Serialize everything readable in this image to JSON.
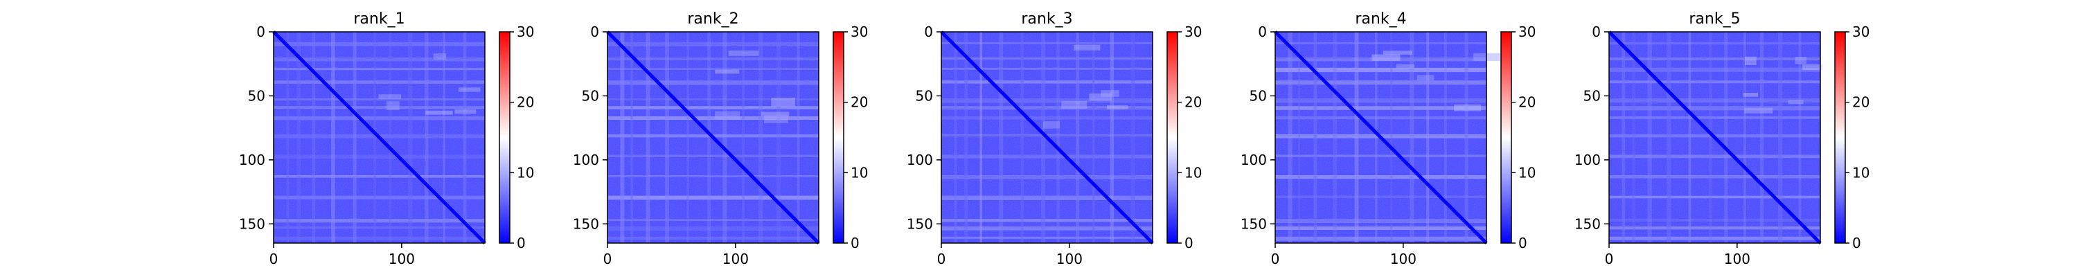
{
  "chart_data": [
    {
      "type": "heatmap",
      "title": "rank_1",
      "xlim": [
        0,
        165
      ],
      "ylim": [
        165,
        0
      ],
      "xticks": [
        "0",
        "100"
      ],
      "yticks": [
        "0",
        "50",
        "100",
        "150"
      ],
      "colorbar": {
        "range": [
          0,
          30
        ],
        "ticks": [
          "0",
          "10",
          "20",
          "30"
        ],
        "colormap": "bwr"
      },
      "diagonal_value": 0,
      "typical_value": 4
    },
    {
      "type": "heatmap",
      "title": "rank_2",
      "xlim": [
        0,
        165
      ],
      "ylim": [
        165,
        0
      ],
      "xticks": [
        "0",
        "100"
      ],
      "yticks": [
        "0",
        "50",
        "100",
        "150"
      ],
      "colorbar": {
        "range": [
          0,
          30
        ],
        "ticks": [
          "0",
          "10",
          "20",
          "30"
        ],
        "colormap": "bwr"
      },
      "diagonal_value": 0,
      "typical_value": 4
    },
    {
      "type": "heatmap",
      "title": "rank_3",
      "xlim": [
        0,
        165
      ],
      "ylim": [
        165,
        0
      ],
      "xticks": [
        "0",
        "100"
      ],
      "yticks": [
        "0",
        "50",
        "100",
        "150"
      ],
      "colorbar": {
        "range": [
          0,
          30
        ],
        "ticks": [
          "0",
          "10",
          "20",
          "30"
        ],
        "colormap": "bwr"
      },
      "diagonal_value": 0,
      "typical_value": 4
    },
    {
      "type": "heatmap",
      "title": "rank_4",
      "xlim": [
        0,
        165
      ],
      "ylim": [
        165,
        0
      ],
      "xticks": [
        "0",
        "100"
      ],
      "yticks": [
        "0",
        "50",
        "100",
        "150"
      ],
      "colorbar": {
        "range": [
          0,
          30
        ],
        "ticks": [
          "0",
          "10",
          "20",
          "30"
        ],
        "colormap": "bwr"
      },
      "diagonal_value": 0,
      "typical_value": 4
    },
    {
      "type": "heatmap",
      "title": "rank_5",
      "xlim": [
        0,
        165
      ],
      "ylim": [
        165,
        0
      ],
      "xticks": [
        "0",
        "100"
      ],
      "yticks": [
        "0",
        "50",
        "100",
        "150"
      ],
      "colorbar": {
        "range": [
          0,
          30
        ],
        "ticks": [
          "0",
          "10",
          "20",
          "30"
        ],
        "colormap": "bwr"
      },
      "diagonal_value": 0,
      "typical_value": 4
    }
  ],
  "colors": {
    "low": "#0000ff",
    "mid": "#ffffff",
    "high": "#ff0000",
    "axis": "#000000"
  }
}
